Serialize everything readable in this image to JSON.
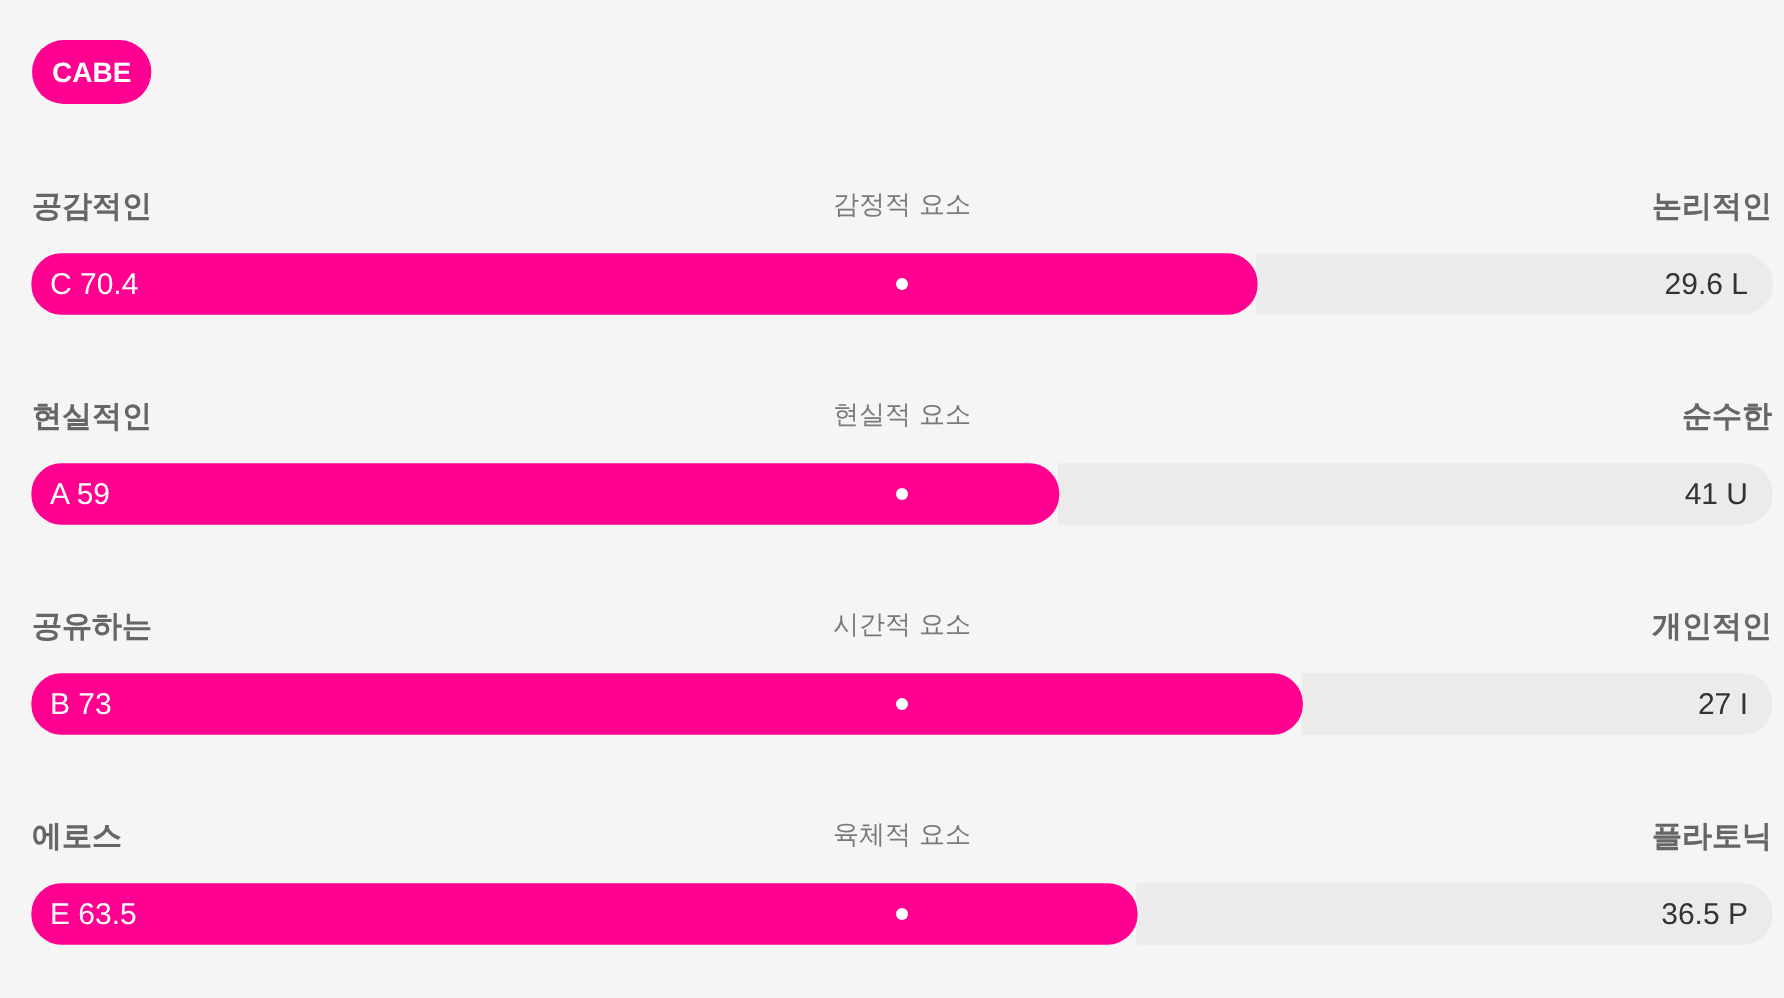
{
  "chart_data": {
    "type": "bar",
    "orientation": "horizontal",
    "stacked": true,
    "title": "CABE",
    "categories": [
      "감정적 요소",
      "현실적 요소",
      "시간적 요소",
      "육체적 요소"
    ],
    "series": [
      {
        "color": "#ff0090",
        "values": [
          70.4,
          59,
          73,
          63.5
        ],
        "value_labels": [
          "C 70.4",
          "A 59",
          "B 73",
          "E 63.5"
        ]
      },
      {
        "color": "#ebebeb",
        "values": [
          29.6,
          41,
          27,
          36.5
        ],
        "value_labels": [
          "29.6 L",
          "41 U",
          "27 I",
          "36.5 P"
        ]
      },
      {
        "type": "scatter",
        "color": "#ffffff",
        "marker": "circle",
        "values": [
          50,
          50,
          50,
          50
        ]
      }
    ],
    "xlim": [
      0,
      100
    ],
    "tick_labels": "y",
    "annotations": [
      "공감적인",
      "논리적인",
      "현실적인",
      "순수한",
      "공유하는",
      "개인적인",
      "에로스",
      "플라토닉"
    ]
  }
}
